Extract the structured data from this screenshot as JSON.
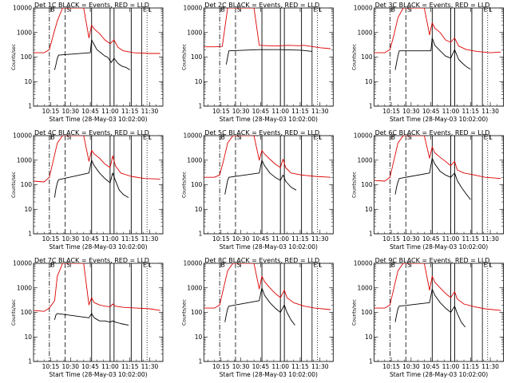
{
  "page": {
    "background": "#ffffff",
    "fg": "#000000",
    "accent": "#dd0000"
  },
  "chart_data": {
    "type": "line",
    "grid": {
      "rows": 3,
      "cols": 3
    },
    "x_tick_labels": [
      "10:15",
      "10:30",
      "10:45",
      "11:00",
      "11:15",
      "11:30"
    ],
    "x_tick_minutes": [
      15,
      30,
      45,
      60,
      75,
      90
    ],
    "xlim_minutes": [
      2,
      100
    ],
    "xlabel": "Start Time (28-May-03 10:02:00)",
    "ylabel": "Counts/sec",
    "y_scale": "log",
    "ylim": [
      1,
      10000
    ],
    "y_tick_labels": [
      "1",
      "10",
      "100",
      "1000",
      "10000"
    ],
    "y_tick_values": [
      1,
      10,
      100,
      1000,
      10000
    ],
    "series_styles": {
      "Events": "#000000",
      "LLD": "#dd0000"
    },
    "marker_labels": [
      "B",
      "S",
      "E",
      "L"
    ],
    "markers": [
      {
        "label": "B",
        "minute": 14,
        "style": "dashdot",
        "text_y": 9000
      },
      {
        "label": "S",
        "minute": 26,
        "style": "dashed",
        "text_y": 9000
      },
      {
        "label": "E",
        "minute": 84,
        "style": "solid",
        "text_y": 9000
      },
      {
        "label": "L",
        "minute": 88,
        "style": "dotted",
        "text_y": 9000
      }
    ],
    "intervals_minutes": [
      [
        46,
        46
      ],
      [
        60,
        60
      ],
      [
        63,
        63
      ],
      [
        76,
        76
      ]
    ],
    "panels": [
      {
        "title": "Det 1C BLACK = Events, RED = LLD",
        "events": [
          [
            18,
            30
          ],
          [
            19,
            50
          ],
          [
            20,
            90
          ],
          [
            21,
            120
          ],
          [
            45,
            150
          ],
          [
            46,
            500
          ],
          [
            48,
            320
          ],
          [
            50,
            200
          ],
          [
            53,
            150
          ],
          [
            56,
            110
          ],
          [
            58,
            100
          ],
          [
            61,
            60
          ],
          [
            63,
            90
          ],
          [
            66,
            55
          ],
          [
            69,
            42
          ],
          [
            72,
            38
          ],
          [
            75,
            30
          ]
        ],
        "lld": [
          [
            2,
            150
          ],
          [
            10,
            150
          ],
          [
            14,
            200
          ],
          [
            17,
            800
          ],
          [
            20,
            3000
          ],
          [
            24,
            10000
          ],
          [
            40,
            10000
          ],
          [
            44,
            600
          ],
          [
            46,
            2000
          ],
          [
            48,
            1400
          ],
          [
            52,
            900
          ],
          [
            56,
            500
          ],
          [
            60,
            350
          ],
          [
            63,
            500
          ],
          [
            66,
            250
          ],
          [
            70,
            180
          ],
          [
            78,
            150
          ],
          [
            90,
            140
          ],
          [
            98,
            140
          ]
        ]
      },
      {
        "title": "Det 2C BLACK = Events, RED = LLD",
        "events": [
          [
            19,
            50
          ],
          [
            20,
            100
          ],
          [
            21,
            180
          ],
          [
            44,
            200
          ],
          [
            60,
            200
          ],
          [
            76,
            190
          ],
          [
            84,
            170
          ]
        ],
        "lld": [
          [
            2,
            260
          ],
          [
            10,
            260
          ],
          [
            16,
            270
          ],
          [
            20,
            10000
          ],
          [
            40,
            10000
          ],
          [
            44,
            300
          ],
          [
            56,
            280
          ],
          [
            66,
            300
          ],
          [
            74,
            290
          ],
          [
            78,
            300
          ],
          [
            90,
            240
          ],
          [
            98,
            220
          ]
        ]
      },
      {
        "title": "Det 3C BLACK = Events, RED = LLD",
        "events": [
          [
            18,
            30
          ],
          [
            19,
            60
          ],
          [
            20,
            110
          ],
          [
            21,
            180
          ],
          [
            45,
            180
          ],
          [
            46,
            600
          ],
          [
            48,
            300
          ],
          [
            52,
            180
          ],
          [
            56,
            110
          ],
          [
            60,
            90
          ],
          [
            63,
            200
          ],
          [
            66,
            80
          ],
          [
            69,
            55
          ],
          [
            72,
            40
          ],
          [
            75,
            32
          ]
        ],
        "lld": [
          [
            2,
            150
          ],
          [
            10,
            150
          ],
          [
            14,
            200
          ],
          [
            17,
            800
          ],
          [
            20,
            4000
          ],
          [
            24,
            10000
          ],
          [
            40,
            10000
          ],
          [
            44,
            800
          ],
          [
            46,
            2500
          ],
          [
            48,
            1500
          ],
          [
            52,
            1000
          ],
          [
            56,
            500
          ],
          [
            60,
            400
          ],
          [
            63,
            600
          ],
          [
            66,
            280
          ],
          [
            72,
            200
          ],
          [
            80,
            170
          ],
          [
            90,
            150
          ],
          [
            98,
            160
          ]
        ]
      },
      {
        "title": "Det 4C BLACK = Events, RED = LLD",
        "events": [
          [
            18,
            30
          ],
          [
            19,
            70
          ],
          [
            20,
            120
          ],
          [
            21,
            160
          ],
          [
            44,
            300
          ],
          [
            46,
            1000
          ],
          [
            48,
            600
          ],
          [
            52,
            300
          ],
          [
            56,
            180
          ],
          [
            60,
            120
          ],
          [
            62,
            300
          ],
          [
            64,
            150
          ],
          [
            67,
            60
          ],
          [
            70,
            40
          ],
          [
            74,
            30
          ]
        ],
        "lld": [
          [
            2,
            140
          ],
          [
            10,
            130
          ],
          [
            14,
            200
          ],
          [
            17,
            1000
          ],
          [
            20,
            5000
          ],
          [
            24,
            10000
          ],
          [
            40,
            10000
          ],
          [
            44,
            900
          ],
          [
            46,
            2500
          ],
          [
            48,
            1800
          ],
          [
            52,
            1200
          ],
          [
            56,
            700
          ],
          [
            60,
            500
          ],
          [
            62,
            1500
          ],
          [
            64,
            600
          ],
          [
            68,
            300
          ],
          [
            76,
            220
          ],
          [
            86,
            180
          ],
          [
            98,
            170
          ]
        ]
      },
      {
        "title": "Det 5C BLACK = Events, RED = LLD",
        "events": [
          [
            18,
            40
          ],
          [
            19,
            80
          ],
          [
            20,
            150
          ],
          [
            21,
            200
          ],
          [
            44,
            300
          ],
          [
            46,
            1000
          ],
          [
            48,
            600
          ],
          [
            52,
            300
          ],
          [
            56,
            200
          ],
          [
            60,
            150
          ],
          [
            62,
            250
          ],
          [
            64,
            140
          ],
          [
            68,
            80
          ],
          [
            72,
            60
          ]
        ],
        "lld": [
          [
            2,
            200
          ],
          [
            10,
            200
          ],
          [
            14,
            250
          ],
          [
            17,
            1000
          ],
          [
            20,
            5000
          ],
          [
            24,
            10000
          ],
          [
            40,
            10000
          ],
          [
            44,
            1000
          ],
          [
            46,
            2500
          ],
          [
            48,
            1800
          ],
          [
            52,
            1100
          ],
          [
            56,
            700
          ],
          [
            60,
            500
          ],
          [
            62,
            1100
          ],
          [
            64,
            500
          ],
          [
            68,
            300
          ],
          [
            76,
            250
          ],
          [
            86,
            220
          ],
          [
            98,
            200
          ]
        ]
      },
      {
        "title": "Det 6C BLACK = Events, RED = LLD",
        "events": [
          [
            18,
            40
          ],
          [
            19,
            80
          ],
          [
            20,
            130
          ],
          [
            21,
            180
          ],
          [
            44,
            300
          ],
          [
            46,
            1200
          ],
          [
            48,
            700
          ],
          [
            52,
            350
          ],
          [
            56,
            250
          ],
          [
            60,
            200
          ],
          [
            63,
            300
          ],
          [
            65,
            150
          ],
          [
            68,
            80
          ],
          [
            72,
            40
          ],
          [
            75,
            25
          ]
        ],
        "lld": [
          [
            2,
            150
          ],
          [
            10,
            140
          ],
          [
            14,
            200
          ],
          [
            17,
            1000
          ],
          [
            20,
            5000
          ],
          [
            24,
            10000
          ],
          [
            40,
            10000
          ],
          [
            44,
            1200
          ],
          [
            46,
            3500
          ],
          [
            48,
            2000
          ],
          [
            52,
            1300
          ],
          [
            56,
            900
          ],
          [
            60,
            600
          ],
          [
            63,
            900
          ],
          [
            65,
            400
          ],
          [
            70,
            300
          ],
          [
            78,
            250
          ],
          [
            86,
            200
          ],
          [
            98,
            180
          ]
        ]
      },
      {
        "title": "Det 7C BLACK = Events, RED = LLD",
        "events": [
          [
            18,
            50
          ],
          [
            19,
            80
          ],
          [
            20,
            90
          ],
          [
            44,
            60
          ],
          [
            46,
            90
          ],
          [
            48,
            60
          ],
          [
            52,
            45
          ],
          [
            56,
            45
          ],
          [
            60,
            40
          ],
          [
            62,
            45
          ],
          [
            64,
            40
          ],
          [
            68,
            35
          ],
          [
            74,
            30
          ]
        ],
        "lld": [
          [
            2,
            120
          ],
          [
            10,
            110
          ],
          [
            14,
            150
          ],
          [
            18,
            300
          ],
          [
            20,
            3000
          ],
          [
            24,
            10000
          ],
          [
            40,
            10000
          ],
          [
            44,
            200
          ],
          [
            46,
            400
          ],
          [
            48,
            250
          ],
          [
            52,
            200
          ],
          [
            56,
            180
          ],
          [
            60,
            170
          ],
          [
            62,
            220
          ],
          [
            64,
            180
          ],
          [
            70,
            160
          ],
          [
            80,
            150
          ],
          [
            90,
            140
          ],
          [
            98,
            120
          ]
        ]
      },
      {
        "title": "Det 8C BLACK = Events, RED = LLD",
        "events": [
          [
            18,
            40
          ],
          [
            19,
            80
          ],
          [
            20,
            140
          ],
          [
            21,
            180
          ],
          [
            44,
            300
          ],
          [
            46,
            1000
          ],
          [
            48,
            500
          ],
          [
            52,
            250
          ],
          [
            56,
            150
          ],
          [
            60,
            100
          ],
          [
            63,
            200
          ],
          [
            65,
            100
          ],
          [
            68,
            50
          ],
          [
            71,
            30
          ]
        ],
        "lld": [
          [
            2,
            150
          ],
          [
            10,
            150
          ],
          [
            14,
            200
          ],
          [
            17,
            1000
          ],
          [
            20,
            5000
          ],
          [
            24,
            10000
          ],
          [
            40,
            10000
          ],
          [
            44,
            900
          ],
          [
            46,
            3000
          ],
          [
            48,
            1800
          ],
          [
            52,
            1000
          ],
          [
            56,
            600
          ],
          [
            60,
            400
          ],
          [
            63,
            800
          ],
          [
            65,
            400
          ],
          [
            70,
            250
          ],
          [
            78,
            180
          ],
          [
            86,
            150
          ],
          [
            98,
            130
          ]
        ]
      },
      {
        "title": "Det 9C BLACK = Events, RED = LLD",
        "events": [
          [
            18,
            40
          ],
          [
            19,
            80
          ],
          [
            20,
            140
          ],
          [
            21,
            180
          ],
          [
            44,
            250
          ],
          [
            46,
            900
          ],
          [
            48,
            500
          ],
          [
            52,
            250
          ],
          [
            56,
            150
          ],
          [
            60,
            100
          ],
          [
            63,
            180
          ],
          [
            65,
            90
          ],
          [
            68,
            40
          ],
          [
            71,
            25
          ]
        ],
        "lld": [
          [
            2,
            150
          ],
          [
            10,
            150
          ],
          [
            14,
            200
          ],
          [
            17,
            1000
          ],
          [
            20,
            5000
          ],
          [
            24,
            10000
          ],
          [
            40,
            10000
          ],
          [
            44,
            800
          ],
          [
            46,
            3000
          ],
          [
            48,
            1700
          ],
          [
            52,
            1000
          ],
          [
            56,
            600
          ],
          [
            60,
            400
          ],
          [
            63,
            700
          ],
          [
            65,
            350
          ],
          [
            70,
            220
          ],
          [
            78,
            170
          ],
          [
            86,
            140
          ],
          [
            98,
            120
          ]
        ]
      }
    ]
  }
}
